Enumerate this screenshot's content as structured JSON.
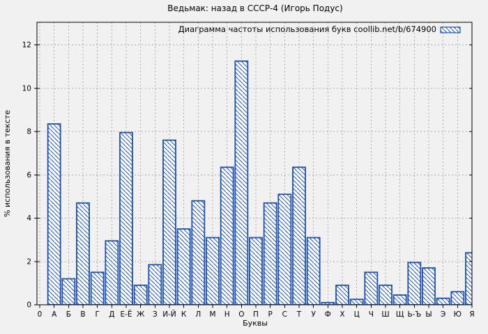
{
  "window": {
    "title": "Ведьмак: назад в СССР-4 (Игорь Подус)"
  },
  "chart_data": {
    "type": "bar",
    "title": "Ведьмак: назад в СССР-4 (Игорь Подус)",
    "legend": "Диаграмма частоты использования букв coollib.net/b/674900",
    "legend_position": "top-right-inside",
    "xlabel": "Буквы",
    "ylabel": "% использования в тексте",
    "categories": [
      "0",
      "А",
      "Б",
      "В",
      "Г",
      "Д",
      "Е-Ё",
      "Ж",
      "З",
      "И-Й",
      "К",
      "Л",
      "М",
      "Н",
      "О",
      "П",
      "Р",
      "С",
      "Т",
      "У",
      "Ф",
      "Х",
      "Ц",
      "Ч",
      "Ш",
      "Щ",
      "Ь-Ъ",
      "Ы",
      "Э",
      "Ю",
      "Я"
    ],
    "values": [
      0,
      8.35,
      1.2,
      4.7,
      1.5,
      2.95,
      7.95,
      0.9,
      1.85,
      7.6,
      3.5,
      4.8,
      3.1,
      6.35,
      11.25,
      3.1,
      4.7,
      5.1,
      6.35,
      3.1,
      0.1,
      0.9,
      0.25,
      1.5,
      0.9,
      0.45,
      1.95,
      1.7,
      0.3,
      0.6,
      2.4
    ],
    "y_ticks": [
      0,
      2,
      4,
      6,
      8,
      10,
      12
    ],
    "ylim": [
      0,
      13
    ],
    "grid": true,
    "bar_style": "hatched",
    "colors": {
      "bar_stroke": "#1b4fad",
      "bar_fill": "#ffffff",
      "grid": "#ababab",
      "frame": "#000000",
      "background": "#f1f1f1",
      "text": "#000000"
    }
  }
}
